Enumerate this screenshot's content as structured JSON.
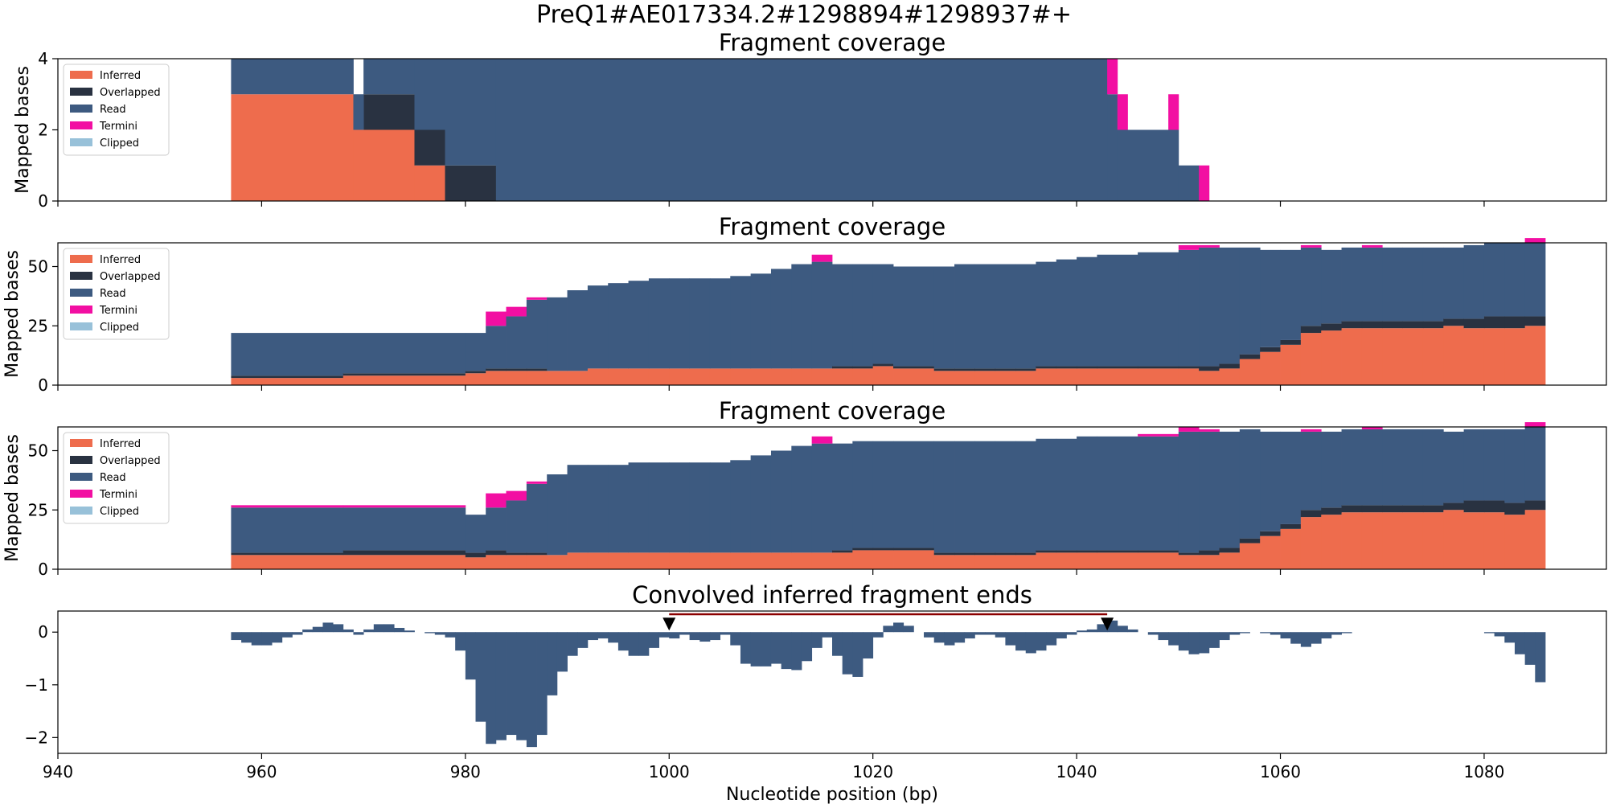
{
  "figure": {
    "suptitle": "PreQ1#AE017334.2#1298894#1298937#+"
  },
  "colors": {
    "inferred": "#EE6C4D",
    "overlapped": "#293241",
    "read": "#3D5A80",
    "termini": "#F20FA2",
    "clipped": "#98C1D9",
    "band": "#8B0000",
    "marker": "#000000"
  },
  "chart_data": [
    {
      "type": "area",
      "title": "Fragment coverage",
      "ylabel": "Mapped bases",
      "xlim": [
        940,
        1092
      ],
      "ylim": [
        0,
        4
      ],
      "yticks": [
        0,
        2,
        4
      ],
      "legend": {
        "position": "top-left",
        "entries": [
          "Inferred",
          "Overlapped",
          "Read",
          "Termini",
          "Clipped"
        ]
      },
      "series": [
        {
          "name": "Inferred",
          "segments": [
            [
              957,
              969,
              3
            ],
            [
              969,
              975,
              2
            ],
            [
              975,
              978,
              1
            ],
            [
              978,
              983,
              0
            ]
          ]
        },
        {
          "name": "Overlapped",
          "segments": [
            [
              969,
              970,
              0
            ],
            [
              970,
              975,
              1
            ],
            [
              975,
              978,
              1
            ],
            [
              978,
              983,
              1
            ]
          ]
        },
        {
          "name": "Read",
          "segments": [
            [
              957,
              969,
              1
            ],
            [
              969,
              970,
              1
            ],
            [
              970,
              975,
              1
            ],
            [
              975,
              978,
              2
            ],
            [
              978,
              983,
              3
            ],
            [
              983,
              1043,
              4
            ],
            [
              1043,
              1044,
              3
            ],
            [
              1044,
              1050,
              2
            ],
            [
              1050,
              1052,
              1
            ]
          ]
        },
        {
          "name": "Termini",
          "segments": [
            [
              1043,
              1044,
              1
            ],
            [
              1044,
              1045,
              1
            ],
            [
              1049,
              1050,
              1
            ],
            [
              1052,
              1053,
              1
            ]
          ]
        },
        {
          "name": "Clipped",
          "segments": []
        }
      ]
    },
    {
      "type": "area",
      "title": "Fragment coverage",
      "ylabel": "Mapped bases",
      "xlim": [
        940,
        1092
      ],
      "ylim": [
        0,
        60
      ],
      "yticks": [
        0,
        25,
        50
      ],
      "legend": {
        "position": "top-left",
        "entries": [
          "Inferred",
          "Overlapped",
          "Read",
          "Termini",
          "Clipped"
        ]
      },
      "x_edges": [
        957,
        968,
        980,
        982,
        984,
        986,
        988,
        990,
        992,
        994,
        996,
        998,
        1000,
        1002,
        1004,
        1006,
        1008,
        1010,
        1012,
        1014,
        1016,
        1018,
        1020,
        1022,
        1026,
        1028,
        1030,
        1032,
        1034,
        1036,
        1038,
        1040,
        1042,
        1046,
        1050,
        1052,
        1054,
        1056,
        1058,
        1060,
        1062,
        1064,
        1066,
        1068,
        1070,
        1072,
        1074,
        1076,
        1078,
        1080,
        1082,
        1084,
        1086
      ],
      "series": [
        {
          "name": "Inferred",
          "values": [
            3,
            4,
            5,
            6,
            6,
            6,
            6,
            6,
            7,
            7,
            7,
            7,
            7,
            7,
            7,
            7,
            7,
            7,
            7,
            7,
            7,
            7,
            8,
            7,
            6,
            6,
            6,
            6,
            6,
            7,
            7,
            7,
            7,
            7,
            7,
            6,
            7,
            11,
            14,
            17,
            22,
            23,
            24,
            24,
            24,
            24,
            24,
            25,
            24,
            24,
            24,
            25
          ]
        },
        {
          "name": "Overlapped",
          "values": [
            1,
            1,
            1,
            1,
            1,
            1,
            0,
            0,
            0,
            0,
            0,
            0,
            0,
            0,
            0,
            0,
            0,
            0,
            0,
            0,
            1,
            1,
            1,
            1,
            1,
            1,
            1,
            1,
            1,
            1,
            1,
            1,
            1,
            1,
            1,
            2,
            2,
            2,
            2,
            2,
            3,
            3,
            3,
            3,
            3,
            3,
            3,
            3,
            4,
            5,
            5,
            4
          ]
        },
        {
          "name": "Read",
          "values": [
            18,
            17,
            16,
            18,
            22,
            29,
            31,
            34,
            35,
            36,
            37,
            38,
            38,
            38,
            38,
            39,
            40,
            42,
            44,
            45,
            43,
            43,
            42,
            42,
            43,
            44,
            44,
            44,
            44,
            44,
            45,
            46,
            47,
            48,
            49,
            50,
            49,
            45,
            41,
            38,
            33,
            31,
            31,
            31,
            31,
            31,
            31,
            30,
            31,
            31,
            31,
            31
          ]
        },
        {
          "name": "Termini",
          "values": [
            0,
            0,
            0,
            6,
            4,
            1,
            0,
            0,
            0,
            0,
            0,
            0,
            0,
            0,
            0,
            0,
            0,
            0,
            0,
            3,
            0,
            0,
            0,
            0,
            0,
            0,
            0,
            0,
            0,
            0,
            0,
            0,
            0,
            0,
            2,
            1,
            0,
            0,
            0,
            0,
            1,
            0,
            0,
            1,
            0,
            0,
            0,
            0,
            0,
            0,
            0,
            2
          ]
        },
        {
          "name": "Clipped",
          "values": []
        }
      ]
    },
    {
      "type": "area",
      "title": "Fragment coverage",
      "ylabel": "Mapped bases",
      "xlim": [
        940,
        1092
      ],
      "ylim": [
        0,
        60
      ],
      "yticks": [
        0,
        25,
        50
      ],
      "legend": {
        "position": "top-left",
        "entries": [
          "Inferred",
          "Overlapped",
          "Read",
          "Termini",
          "Clipped"
        ]
      },
      "x_edges": [
        957,
        968,
        980,
        982,
        984,
        986,
        988,
        990,
        992,
        994,
        996,
        998,
        1000,
        1002,
        1004,
        1006,
        1008,
        1010,
        1012,
        1014,
        1016,
        1018,
        1020,
        1022,
        1026,
        1028,
        1030,
        1032,
        1034,
        1036,
        1038,
        1040,
        1042,
        1046,
        1050,
        1052,
        1054,
        1056,
        1058,
        1060,
        1062,
        1064,
        1066,
        1068,
        1070,
        1072,
        1074,
        1076,
        1078,
        1080,
        1082,
        1084,
        1086
      ],
      "series": [
        {
          "name": "Inferred",
          "values": [
            6,
            6,
            5,
            6,
            6,
            6,
            6,
            7,
            7,
            7,
            7,
            7,
            7,
            7,
            7,
            7,
            7,
            7,
            7,
            7,
            7,
            8,
            8,
            8,
            6,
            6,
            6,
            6,
            6,
            7,
            7,
            7,
            7,
            7,
            6,
            6,
            7,
            11,
            14,
            17,
            22,
            23,
            24,
            24,
            24,
            24,
            24,
            25,
            24,
            24,
            23,
            25
          ]
        },
        {
          "name": "Overlapped",
          "values": [
            1,
            2,
            2,
            2,
            1,
            1,
            0,
            0,
            0,
            0,
            0,
            0,
            0,
            0,
            0,
            0,
            0,
            0,
            0,
            0,
            1,
            1,
            1,
            1,
            1,
            1,
            1,
            1,
            1,
            1,
            1,
            1,
            1,
            1,
            1,
            2,
            2,
            2,
            2,
            2,
            3,
            3,
            3,
            3,
            3,
            3,
            3,
            3,
            5,
            5,
            5,
            4
          ]
        },
        {
          "name": "Read",
          "values": [
            19,
            18,
            16,
            18,
            22,
            29,
            34,
            37,
            37,
            37,
            38,
            38,
            38,
            38,
            38,
            39,
            41,
            43,
            45,
            46,
            45,
            45,
            45,
            45,
            47,
            47,
            47,
            47,
            47,
            47,
            47,
            48,
            48,
            48,
            51,
            50,
            49,
            46,
            42,
            39,
            33,
            32,
            32,
            32,
            32,
            32,
            32,
            30,
            30,
            30,
            31,
            31
          ]
        },
        {
          "name": "Termini",
          "values": [
            1,
            1,
            0,
            6,
            4,
            1,
            0,
            0,
            0,
            0,
            0,
            0,
            0,
            0,
            0,
            0,
            0,
            0,
            0,
            3,
            0,
            0,
            0,
            0,
            0,
            0,
            0,
            0,
            0,
            0,
            0,
            0,
            0,
            1,
            2,
            1,
            0,
            0,
            0,
            0,
            1,
            0,
            0,
            1,
            0,
            0,
            0,
            0,
            0,
            0,
            0,
            2
          ]
        },
        {
          "name": "Clipped",
          "values": []
        }
      ]
    },
    {
      "type": "bar",
      "title": "Convolved inferred fragment ends",
      "ylabel": "",
      "xlabel": "Nucleotide position (bp)",
      "xlim": [
        940,
        1092
      ],
      "ylim": [
        -2.3,
        0.4
      ],
      "yticks": [
        0,
        -1,
        -2
      ],
      "xticks": [
        940,
        960,
        980,
        1000,
        1020,
        1040,
        1060,
        1080
      ],
      "markers": [
        1000,
        1043
      ],
      "range_line": [
        1000,
        1043
      ],
      "bars": [
        [
          957,
          -0.15
        ],
        [
          958,
          -0.2
        ],
        [
          959,
          -0.25
        ],
        [
          960,
          -0.25
        ],
        [
          961,
          -0.2
        ],
        [
          962,
          -0.1
        ],
        [
          963,
          -0.05
        ],
        [
          964,
          0.05
        ],
        [
          965,
          0.1
        ],
        [
          966,
          0.18
        ],
        [
          967,
          0.15
        ],
        [
          968,
          0.05
        ],
        [
          969,
          -0.05
        ],
        [
          970,
          0.05
        ],
        [
          971,
          0.15
        ],
        [
          972,
          0.15
        ],
        [
          973,
          0.08
        ],
        [
          974,
          0.03
        ],
        [
          976,
          -0.02
        ],
        [
          977,
          -0.05
        ],
        [
          978,
          -0.1
        ],
        [
          979,
          -0.35
        ],
        [
          980,
          -0.9
        ],
        [
          981,
          -1.7
        ],
        [
          982,
          -2.12
        ],
        [
          983,
          -2.05
        ],
        [
          984,
          -1.95
        ],
        [
          985,
          -2.05
        ],
        [
          986,
          -2.18
        ],
        [
          987,
          -1.95
        ],
        [
          988,
          -1.2
        ],
        [
          989,
          -0.75
        ],
        [
          990,
          -0.45
        ],
        [
          991,
          -0.3
        ],
        [
          992,
          -0.15
        ],
        [
          993,
          -0.12
        ],
        [
          994,
          -0.2
        ],
        [
          995,
          -0.35
        ],
        [
          996,
          -0.45
        ],
        [
          997,
          -0.45
        ],
        [
          998,
          -0.3
        ],
        [
          999,
          -0.1
        ],
        [
          1000,
          -0.12
        ],
        [
          1001,
          -0.05
        ],
        [
          1002,
          -0.15
        ],
        [
          1003,
          -0.18
        ],
        [
          1004,
          -0.15
        ],
        [
          1005,
          -0.05
        ],
        [
          1006,
          -0.25
        ],
        [
          1007,
          -0.6
        ],
        [
          1008,
          -0.65
        ],
        [
          1009,
          -0.65
        ],
        [
          1010,
          -0.6
        ],
        [
          1011,
          -0.7
        ],
        [
          1012,
          -0.72
        ],
        [
          1013,
          -0.55
        ],
        [
          1014,
          -0.3
        ],
        [
          1015,
          -0.1
        ],
        [
          1016,
          -0.45
        ],
        [
          1017,
          -0.8
        ],
        [
          1018,
          -0.85
        ],
        [
          1019,
          -0.5
        ],
        [
          1020,
          -0.1
        ],
        [
          1021,
          0.12
        ],
        [
          1022,
          0.18
        ],
        [
          1023,
          0.12
        ],
        [
          1025,
          -0.1
        ],
        [
          1026,
          -0.2
        ],
        [
          1027,
          -0.25
        ],
        [
          1028,
          -0.2
        ],
        [
          1029,
          -0.12
        ],
        [
          1030,
          -0.05
        ],
        [
          1031,
          -0.05
        ],
        [
          1032,
          -0.1
        ],
        [
          1033,
          -0.25
        ],
        [
          1034,
          -0.35
        ],
        [
          1035,
          -0.4
        ],
        [
          1036,
          -0.35
        ],
        [
          1037,
          -0.25
        ],
        [
          1038,
          -0.12
        ],
        [
          1039,
          -0.05
        ],
        [
          1040,
          0.03
        ],
        [
          1041,
          0.05
        ],
        [
          1042,
          0.15
        ],
        [
          1043,
          0.22
        ],
        [
          1044,
          0.12
        ],
        [
          1045,
          0.05
        ],
        [
          1047,
          -0.05
        ],
        [
          1048,
          -0.15
        ],
        [
          1049,
          -0.25
        ],
        [
          1050,
          -0.35
        ],
        [
          1051,
          -0.42
        ],
        [
          1052,
          -0.4
        ],
        [
          1053,
          -0.3
        ],
        [
          1054,
          -0.15
        ],
        [
          1055,
          -0.05
        ],
        [
          1056,
          -0.02
        ],
        [
          1058,
          -0.02
        ],
        [
          1059,
          -0.05
        ],
        [
          1060,
          -0.12
        ],
        [
          1061,
          -0.22
        ],
        [
          1062,
          -0.28
        ],
        [
          1063,
          -0.22
        ],
        [
          1064,
          -0.12
        ],
        [
          1065,
          -0.05
        ],
        [
          1066,
          -0.02
        ],
        [
          1080,
          -0.02
        ],
        [
          1081,
          -0.08
        ],
        [
          1082,
          -0.2
        ],
        [
          1083,
          -0.42
        ],
        [
          1084,
          -0.62
        ],
        [
          1085,
          -0.95
        ]
      ]
    }
  ]
}
